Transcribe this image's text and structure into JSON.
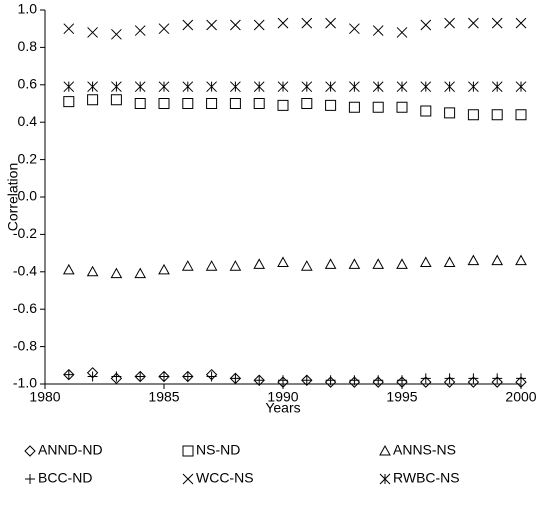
{
  "chart_data": {
    "type": "scatter",
    "xlabel": "Years",
    "ylabel": "Correlation",
    "x": [
      1981,
      1982,
      1983,
      1984,
      1985,
      1986,
      1987,
      1988,
      1989,
      1990,
      1991,
      1992,
      1993,
      1994,
      1995,
      1996,
      1997,
      1998,
      1999,
      2000
    ],
    "xlim": [
      1980,
      2000
    ],
    "xticks": [
      1980,
      1985,
      1990,
      1995,
      2000
    ],
    "ylim": [
      -1,
      1
    ],
    "yticks": [
      {
        "value": -1,
        "label": "-1.0"
      },
      {
        "value": -0.8,
        "label": "-0.8"
      },
      {
        "value": -0.6,
        "label": "-0.6"
      },
      {
        "value": -0.4,
        "label": "-0.4"
      },
      {
        "value": -0.2,
        "label": "-0.2"
      },
      {
        "value": 0,
        "label": "0.0"
      },
      {
        "value": 0.2,
        "label": "0.2"
      },
      {
        "value": 0.4,
        "label": "0.4"
      },
      {
        "value": 0.6,
        "label": "0.6"
      },
      {
        "value": 0.8,
        "label": "0.8"
      },
      {
        "value": 1,
        "label": "1.0"
      }
    ],
    "grid": false,
    "legend": "bottom",
    "series": [
      {
        "name": "ANND-ND",
        "marker": "diamond",
        "color": "#000000",
        "values": [
          -0.95,
          -0.94,
          -0.97,
          -0.96,
          -0.96,
          -0.96,
          -0.95,
          -0.97,
          -0.98,
          -0.99,
          -0.98,
          -0.99,
          -0.99,
          -0.99,
          -0.99,
          -0.99,
          -0.99,
          -0.99,
          -0.99,
          -0.99
        ]
      },
      {
        "name": "NS-ND",
        "marker": "square",
        "color": "#000000",
        "values": [
          0.51,
          0.52,
          0.52,
          0.5,
          0.5,
          0.5,
          0.5,
          0.5,
          0.5,
          0.49,
          0.5,
          0.49,
          0.48,
          0.48,
          0.48,
          0.46,
          0.45,
          0.44,
          0.44,
          0.44
        ]
      },
      {
        "name": "ANNS-NS",
        "marker": "triangle",
        "color": "#000000",
        "values": [
          -0.39,
          -0.4,
          -0.41,
          -0.41,
          -0.39,
          -0.37,
          -0.37,
          -0.37,
          -0.36,
          -0.35,
          -0.37,
          -0.36,
          -0.36,
          -0.36,
          -0.36,
          -0.35,
          -0.35,
          -0.34,
          -0.34,
          -0.34
        ]
      },
      {
        "name": "BCC-ND",
        "marker": "plus",
        "color": "#000000",
        "values": [
          -0.95,
          -0.96,
          -0.96,
          -0.96,
          -0.96,
          -0.96,
          -0.96,
          -0.97,
          -0.98,
          -0.98,
          -0.98,
          -0.98,
          -0.98,
          -0.98,
          -0.98,
          -0.97,
          -0.97,
          -0.97,
          -0.97,
          -0.97
        ]
      },
      {
        "name": "WCC-NS",
        "marker": "x",
        "color": "#000000",
        "values": [
          0.9,
          0.88,
          0.87,
          0.89,
          0.9,
          0.92,
          0.92,
          0.92,
          0.92,
          0.93,
          0.93,
          0.93,
          0.9,
          0.89,
          0.88,
          0.92,
          0.93,
          0.93,
          0.93,
          0.93
        ]
      },
      {
        "name": "RWBC-NS",
        "marker": "star",
        "color": "#000000",
        "values": [
          0.59,
          0.59,
          0.59,
          0.59,
          0.59,
          0.59,
          0.59,
          0.59,
          0.59,
          0.59,
          0.59,
          0.59,
          0.59,
          0.59,
          0.59,
          0.59,
          0.59,
          0.59,
          0.59,
          0.59
        ]
      }
    ]
  }
}
